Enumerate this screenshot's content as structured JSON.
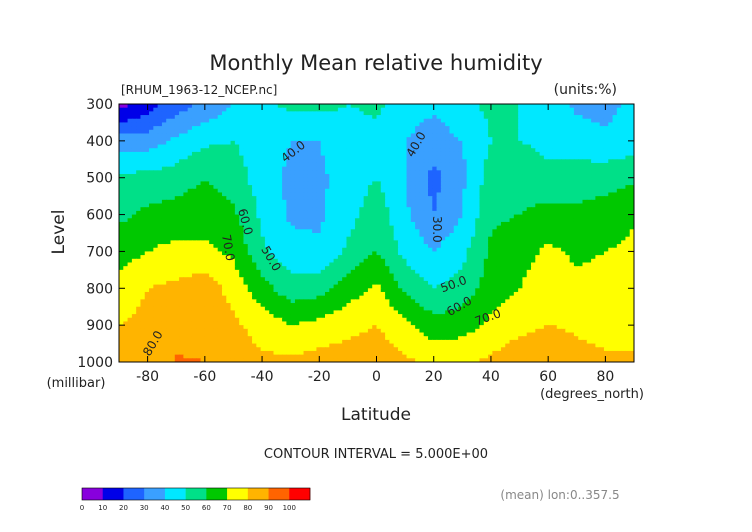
{
  "chart_data": {
    "type": "heatmap",
    "title": "Monthly Mean relative humidity",
    "file_label": "[RHUM_1963-12_NCEP.nc]",
    "units_label": "(units:%)",
    "ylabel": "Level",
    "ylabel_unit": "(millibar)",
    "xlabel": "Latitude",
    "xlabel_unit": "(degrees_north)",
    "contour_interval_text": "CONTOUR INTERVAL = 5.000E+00",
    "footer_note": "(mean) lon:0..357.5",
    "xlim": [
      -90,
      90
    ],
    "ylim": [
      1000,
      300
    ],
    "x_ticks": [
      -80,
      -60,
      -40,
      -20,
      0,
      20,
      40,
      60,
      80
    ],
    "y_ticks": [
      300,
      400,
      500,
      600,
      700,
      800,
      900,
      1000
    ],
    "x_tick_labels": [
      "-80",
      "-60",
      "-40",
      "-20",
      "0",
      "20",
      "40",
      "60",
      "80"
    ],
    "y_tick_labels": [
      "300",
      "400",
      "500",
      "600",
      "700",
      "800",
      "900",
      "1000"
    ],
    "latitudes": [
      -90,
      -80,
      -70,
      -60,
      -50,
      -40,
      -30,
      -20,
      -10,
      0,
      10,
      20,
      30,
      40,
      50,
      60,
      70,
      80,
      90
    ],
    "levels": [
      300,
      400,
      500,
      600,
      700,
      800,
      900,
      1000
    ],
    "values": [
      [
        5,
        15,
        25,
        32,
        40,
        48,
        52,
        53,
        50,
        52,
        45,
        42,
        48,
        52,
        50,
        45,
        38,
        35,
        45
      ],
      [
        35,
        35,
        42,
        48,
        50,
        45,
        40,
        40,
        45,
        47,
        40,
        35,
        40,
        50,
        50,
        48,
        45,
        43,
        45
      ],
      [
        52,
        53,
        55,
        60,
        55,
        45,
        38,
        38,
        45,
        50,
        40,
        27,
        38,
        55,
        55,
        52,
        55,
        55,
        58
      ],
      [
        58,
        62,
        64,
        66,
        62,
        48,
        38,
        38,
        46,
        56,
        42,
        30,
        40,
        58,
        60,
        64,
        62,
        65,
        69
      ],
      [
        65,
        70,
        73,
        72,
        68,
        52,
        44,
        42,
        52,
        60,
        47,
        40,
        47,
        62,
        66,
        72,
        68,
        70,
        72
      ],
      [
        75,
        80,
        82,
        86,
        76,
        64,
        54,
        56,
        65,
        72,
        58,
        50,
        54,
        65,
        70,
        76,
        73,
        74,
        78
      ],
      [
        80,
        82,
        85,
        88,
        82,
        76,
        70,
        73,
        77,
        80,
        72,
        64,
        66,
        72,
        76,
        80,
        78,
        76,
        80
      ],
      [
        80,
        85,
        91,
        90,
        84,
        82,
        82,
        84,
        85,
        87,
        82,
        78,
        78,
        82,
        88,
        90,
        84,
        82,
        80
      ]
    ],
    "contour_labels": [
      {
        "text": "40.0",
        "lat": -29,
        "lev": 430,
        "rot": -38
      },
      {
        "text": "40.0",
        "lat": 14,
        "lev": 410,
        "rot": -60
      },
      {
        "text": "30.0",
        "lat": 21,
        "lev": 640,
        "rot": 90
      },
      {
        "text": "60.0",
        "lat": -46,
        "lev": 620,
        "rot": 75
      },
      {
        "text": "70.0",
        "lat": -52,
        "lev": 690,
        "rot": 80
      },
      {
        "text": "50.0",
        "lat": -37,
        "lev": 720,
        "rot": 60
      },
      {
        "text": "50.0",
        "lat": 27,
        "lev": 790,
        "rot": -20
      },
      {
        "text": "60.0",
        "lat": 29,
        "lev": 850,
        "rot": -30
      },
      {
        "text": "70.0",
        "lat": 39,
        "lev": 880,
        "rot": -20
      },
      {
        "text": "80.0",
        "lat": -78,
        "lev": 950,
        "rot": -60
      }
    ],
    "colorbar": {
      "boundaries": [
        0,
        10,
        20,
        30,
        40,
        50,
        60,
        70,
        80,
        90,
        100
      ],
      "tick_labels": [
        "0",
        "10",
        "20",
        "30",
        "40",
        "50",
        "60",
        "70",
        "80",
        "90",
        "100"
      ],
      "colors": [
        "#8800dd",
        "#0000e8",
        "#1e64ff",
        "#3aa0ff",
        "#00e8ff",
        "#00e088",
        "#00c800",
        "#ffff00",
        "#ffb400",
        "#ff6400",
        "#ff0000"
      ]
    }
  }
}
